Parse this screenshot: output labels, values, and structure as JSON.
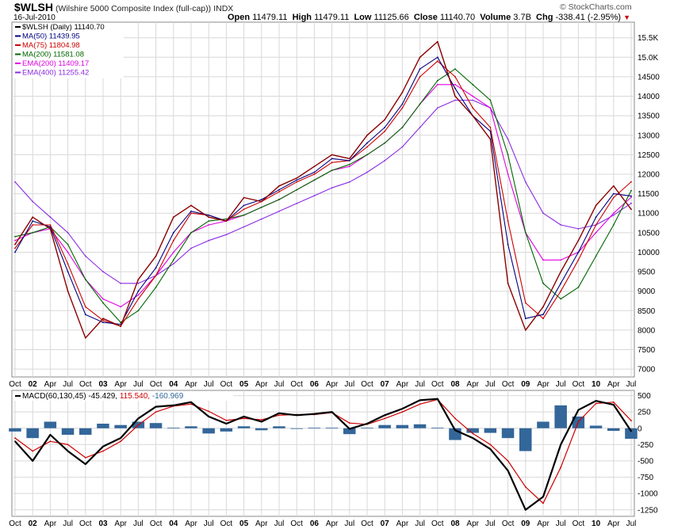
{
  "header": {
    "symbol": "$WLSH",
    "name": "(Wilshire 5000 Composite Index (full-cap))",
    "exchange": "INDX",
    "date": "16-Jul-2010",
    "open_label": "Open",
    "open": "11479.11",
    "high_label": "High",
    "high": "11479.11",
    "low_label": "Low",
    "low": "11125.66",
    "close_label": "Close",
    "close": "11140.70",
    "volume_label": "Volume",
    "volume": "3.7B",
    "chg_label": "Chg",
    "chg": "-338.41 (-2.95%)",
    "chg_arrow": "▼",
    "watermark": "© StockCharts.com"
  },
  "price_legend": [
    {
      "label": "$WLSH (Daily) 11140.70",
      "color": "#000000"
    },
    {
      "label": "MA(50) 11439.95",
      "color": "#000080"
    },
    {
      "label": "MA(75) 11804.98",
      "color": "#cc0000"
    },
    {
      "label": "MA(200) 11581.08",
      "color": "#006600"
    },
    {
      "label": "EMA(200) 11409.17",
      "color": "#e000e0"
    },
    {
      "label": "EMA(400) 11255.42",
      "color": "#8a2be2"
    }
  ],
  "macd_legend": {
    "label": "MACD(60,130,45)",
    "macd": "-45.429",
    "signal": "115.540",
    "hist": "-160.969"
  },
  "colors": {
    "price": "#8b0000",
    "ma50": "#000080",
    "ma75": "#cc0000",
    "ma200": "#006600",
    "ema200": "#e000e0",
    "ema400": "#8a2be2",
    "macd": "#000000",
    "signal": "#cc0000",
    "histogram": "#336699",
    "grid": "#d8d8d8"
  },
  "chart_data": [
    {
      "type": "line",
      "title": "$WLSH",
      "x_axis_labels": [
        "Oct",
        "02",
        "Apr",
        "Jul",
        "Oct",
        "03",
        "Apr",
        "Jul",
        "Oct",
        "04",
        "Apr",
        "Jul",
        "Oct",
        "05",
        "Apr",
        "Jul",
        "Oct",
        "06",
        "Apr",
        "Jul",
        "Oct",
        "07",
        "Apr",
        "Jul",
        "Oct",
        "08",
        "Apr",
        "Jul",
        "Oct",
        "09",
        "Apr",
        "Jul",
        "Oct",
        "10",
        "Apr",
        "Jul"
      ],
      "y_ticks": [
        "7000",
        "7500",
        "8000",
        "8500",
        "9000",
        "9500",
        "10000",
        "10500",
        "11000",
        "11500",
        "12000",
        "12500",
        "13000",
        "13500",
        "14000",
        "14500",
        "15.0K",
        "15.5K"
      ],
      "ylim": [
        6800,
        15900
      ],
      "x": [
        "2001-10",
        "2002-01",
        "2002-04",
        "2002-07",
        "2002-10",
        "2003-01",
        "2003-04",
        "2003-07",
        "2003-10",
        "2004-01",
        "2004-04",
        "2004-07",
        "2004-10",
        "2005-01",
        "2005-04",
        "2005-07",
        "2005-10",
        "2006-01",
        "2006-04",
        "2006-07",
        "2006-10",
        "2007-01",
        "2007-04",
        "2007-07",
        "2007-10",
        "2008-01",
        "2008-04",
        "2008-07",
        "2008-10",
        "2009-01",
        "2009-04",
        "2009-07",
        "2009-10",
        "2010-01",
        "2010-04",
        "2010-07"
      ],
      "series": [
        {
          "name": "$WLSH (Daily)",
          "values": [
            10200,
            10900,
            10600,
            9000,
            7800,
            8300,
            8100,
            9300,
            9900,
            10900,
            11200,
            10900,
            10800,
            11400,
            11300,
            11700,
            11900,
            12200,
            12500,
            12400,
            13000,
            13400,
            14100,
            15000,
            15400,
            14000,
            13500,
            12900,
            9200,
            8000,
            8600,
            9500,
            10300,
            11200,
            11700,
            11100
          ]
        },
        {
          "name": "MA(50)",
          "values": [
            10000,
            10800,
            10650,
            9500,
            8400,
            8200,
            8150,
            9000,
            9600,
            10500,
            11050,
            10950,
            10800,
            11200,
            11350,
            11600,
            11850,
            12050,
            12400,
            12350,
            12800,
            13200,
            13800,
            14700,
            15000,
            14200,
            13500,
            13100,
            10200,
            8300,
            8400,
            9200,
            10000,
            10900,
            11500,
            11440
          ]
        },
        {
          "name": "MA(75)",
          "values": [
            10100,
            10700,
            10700,
            9700,
            8600,
            8250,
            8100,
            8800,
            9400,
            10300,
            11000,
            10950,
            10800,
            11100,
            11300,
            11550,
            11800,
            12000,
            12300,
            12350,
            12700,
            13100,
            13700,
            14500,
            14900,
            14500,
            13700,
            13200,
            10800,
            8700,
            8300,
            9000,
            9800,
            10700,
            11400,
            11805
          ]
        },
        {
          "name": "MA(200)",
          "values": [
            10400,
            10500,
            10650,
            10200,
            9300,
            8700,
            8200,
            8500,
            9100,
            9800,
            10500,
            10800,
            10850,
            10950,
            11150,
            11350,
            11600,
            11850,
            12100,
            12250,
            12500,
            12800,
            13200,
            13800,
            14400,
            14700,
            14300,
            13900,
            12500,
            10500,
            9200,
            8800,
            9100,
            9900,
            10700,
            11581
          ]
        },
        {
          "name": "EMA(200)",
          "values": [
            10300,
            10500,
            10600,
            10000,
            9300,
            8800,
            8600,
            8900,
            9400,
            10000,
            10500,
            10700,
            10800,
            10950,
            11150,
            11350,
            11600,
            11850,
            12100,
            12200,
            12500,
            12800,
            13200,
            13800,
            14300,
            14300,
            14000,
            13700,
            12000,
            10500,
            9800,
            9800,
            10000,
            10500,
            11000,
            11409
          ]
        },
        {
          "name": "EMA(400)",
          "values": [
            11800,
            11300,
            10900,
            10500,
            9900,
            9500,
            9200,
            9200,
            9400,
            9700,
            10100,
            10300,
            10450,
            10650,
            10850,
            11050,
            11250,
            11450,
            11650,
            11800,
            12050,
            12350,
            12700,
            13200,
            13700,
            13900,
            13900,
            13700,
            12900,
            11800,
            11000,
            10700,
            10600,
            10700,
            10950,
            11255
          ]
        }
      ]
    },
    {
      "type": "line",
      "title": "MACD(60,130,45)",
      "y_ticks": [
        "-1250",
        "-1000",
        "-750",
        "-500",
        "-250",
        "0",
        "250",
        "500"
      ],
      "ylim": [
        -1350,
        580
      ],
      "x": [
        "2001-10",
        "2002-01",
        "2002-04",
        "2002-07",
        "2002-10",
        "2003-01",
        "2003-04",
        "2003-07",
        "2003-10",
        "2004-01",
        "2004-04",
        "2004-07",
        "2004-10",
        "2005-01",
        "2005-04",
        "2005-07",
        "2005-10",
        "2006-01",
        "2006-04",
        "2006-07",
        "2006-10",
        "2007-01",
        "2007-04",
        "2007-07",
        "2007-10",
        "2008-01",
        "2008-04",
        "2008-07",
        "2008-10",
        "2009-01",
        "2009-04",
        "2009-07",
        "2009-10",
        "2010-01",
        "2010-04",
        "2010-07"
      ],
      "series": [
        {
          "name": "MACD",
          "values": [
            -200,
            -500,
            -100,
            -350,
            -550,
            -280,
            -150,
            150,
            330,
            350,
            400,
            180,
            70,
            180,
            100,
            230,
            200,
            220,
            250,
            -10,
            70,
            200,
            300,
            430,
            450,
            -30,
            -150,
            -320,
            -650,
            -1250,
            -1050,
            -250,
            280,
            420,
            360,
            -45
          ]
        },
        {
          "name": "Signal",
          "values": [
            -150,
            -350,
            -200,
            -250,
            -450,
            -350,
            -200,
            50,
            250,
            340,
            370,
            260,
            120,
            150,
            130,
            200,
            210,
            210,
            240,
            80,
            60,
            150,
            250,
            370,
            440,
            150,
            -80,
            -250,
            -500,
            -900,
            -1150,
            -600,
            100,
            380,
            400,
            116
          ]
        },
        {
          "name": "Histogram",
          "values": [
            -50,
            -150,
            100,
            -100,
            -100,
            70,
            50,
            100,
            80,
            10,
            30,
            -80,
            -50,
            30,
            -30,
            30,
            -10,
            10,
            10,
            -90,
            10,
            50,
            50,
            60,
            10,
            -180,
            -70,
            -70,
            -150,
            -350,
            100,
            350,
            180,
            40,
            -40,
            -161
          ]
        }
      ]
    }
  ]
}
